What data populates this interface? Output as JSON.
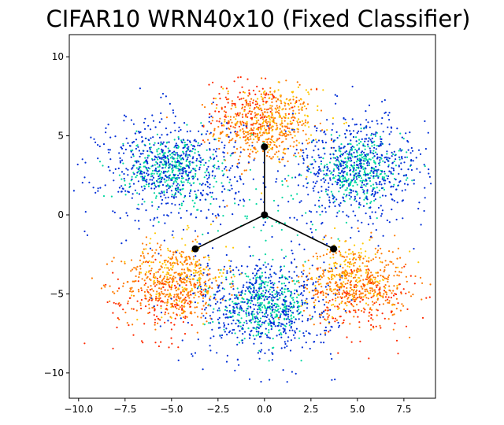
{
  "chart_data": {
    "type": "scatter",
    "title": "CIFAR10 WRN40x10 (Fixed Classifier)",
    "xlabel": "",
    "ylabel": "",
    "xlim": [
      -10.5,
      9.2
    ],
    "ylim": [
      -11.6,
      11.4
    ],
    "x_ticks": [
      -10.0,
      -7.5,
      -5.0,
      -2.5,
      0.0,
      2.5,
      5.0,
      7.5
    ],
    "x_tick_labels": [
      "−10.0",
      "−7.5",
      "−5.0",
      "−2.5",
      "0.0",
      "2.5",
      "5.0",
      "7.5"
    ],
    "y_ticks": [
      -10,
      -5,
      0,
      5,
      10
    ],
    "y_tick_labels": [
      "−10",
      "−5",
      "0",
      "5",
      "10"
    ],
    "grid": false,
    "legend": "none",
    "colormap": [
      "#0000cc",
      "#0050e0",
      "#0090d8",
      "#00c8a8",
      "#00d890",
      "#a0d040",
      "#ffd400",
      "#ffaa00",
      "#ff7000",
      "#ff2000"
    ],
    "clusters": [
      {
        "color": "#ff7a00",
        "center": [
          0,
          5.6
        ],
        "spread": [
          1.3,
          1.2
        ],
        "count": 450
      },
      {
        "color": "#ff2a00",
        "center": [
          -0.8,
          6.6
        ],
        "spread": [
          1.2,
          1.0
        ],
        "count": 120
      },
      {
        "color": "#ffc800",
        "center": [
          0.5,
          6.0
        ],
        "spread": [
          1.3,
          1.2
        ],
        "count": 140
      },
      {
        "color": "#ff7a00",
        "center": [
          -4.9,
          -4.3
        ],
        "spread": [
          1.4,
          1.2
        ],
        "count": 450
      },
      {
        "color": "#ff2a00",
        "center": [
          -5.5,
          -5.6
        ],
        "spread": [
          1.3,
          1.2
        ],
        "count": 120
      },
      {
        "color": "#ffc800",
        "center": [
          -4.4,
          -3.7
        ],
        "spread": [
          1.4,
          1.2
        ],
        "count": 140
      },
      {
        "color": "#ff7a00",
        "center": [
          4.9,
          -4.3
        ],
        "spread": [
          1.4,
          1.2
        ],
        "count": 450
      },
      {
        "color": "#ff2a00",
        "center": [
          5.5,
          -5.6
        ],
        "spread": [
          1.3,
          1.2
        ],
        "count": 120
      },
      {
        "color": "#ffc800",
        "center": [
          4.4,
          -3.7
        ],
        "spread": [
          1.4,
          1.2
        ],
        "count": 140
      },
      {
        "color": "#00d8a0",
        "center": [
          -5.0,
          2.9
        ],
        "spread": [
          1.2,
          1.0
        ],
        "count": 350
      },
      {
        "color": "#00d8a0",
        "center": [
          5.0,
          2.9
        ],
        "spread": [
          1.2,
          1.0
        ],
        "count": 350
      },
      {
        "color": "#00d8a0",
        "center": [
          0,
          -5.8
        ],
        "spread": [
          1.2,
          1.0
        ],
        "count": 350
      },
      {
        "color": "#0030d8",
        "center": [
          -5.0,
          2.9
        ],
        "spread": [
          1.9,
          1.7
        ],
        "count": 600
      },
      {
        "color": "#0030d8",
        "center": [
          5.0,
          2.9
        ],
        "spread": [
          1.9,
          1.7
        ],
        "count": 600
      },
      {
        "color": "#0030d8",
        "center": [
          0,
          -5.8
        ],
        "spread": [
          1.9,
          1.7
        ],
        "count": 600
      },
      {
        "color": "#00d8a0",
        "center": [
          0,
          0
        ],
        "spread": [
          2.0,
          2.0
        ],
        "count": 60
      }
    ],
    "classifier_vertices": [
      [
        0,
        4.3
      ],
      [
        -3.72,
        -2.15
      ],
      [
        3.72,
        -2.15
      ]
    ],
    "origin": [
      0,
      0
    ]
  }
}
